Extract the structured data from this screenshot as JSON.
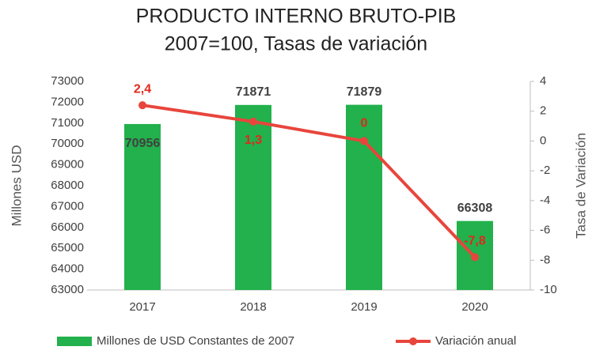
{
  "chart_data": {
    "type": "bar+line",
    "title": "PRODUCTO INTERNO BRUTO-PIB",
    "subtitle": "2007=100, Tasas de variación",
    "ylabel": "Millones USD",
    "y2label": "Tasa de Variación",
    "categories": [
      "2017",
      "2018",
      "2019",
      "2020"
    ],
    "series": [
      {
        "name": "Millones de USD Constantes de 2007",
        "type": "bar",
        "color": "#22b14c",
        "values": [
          70956,
          71871,
          71879,
          66308
        ]
      },
      {
        "name": "Variación anual",
        "type": "line",
        "axis": "y2",
        "color": "#e8453c",
        "values": [
          2.4,
          1.3,
          0,
          -7.8
        ],
        "value_labels": [
          "2,4",
          "1,3",
          "0",
          "-7,8"
        ]
      }
    ],
    "ylim": [
      63000,
      73000
    ],
    "yticks": [
      63000,
      64000,
      65000,
      66000,
      67000,
      68000,
      69000,
      70000,
      71000,
      72000,
      73000
    ],
    "y2lim": [
      -10,
      4
    ],
    "y2ticks": [
      -10,
      -8,
      -6,
      -4,
      -2,
      0,
      2,
      4
    ],
    "legend": "bottom"
  }
}
